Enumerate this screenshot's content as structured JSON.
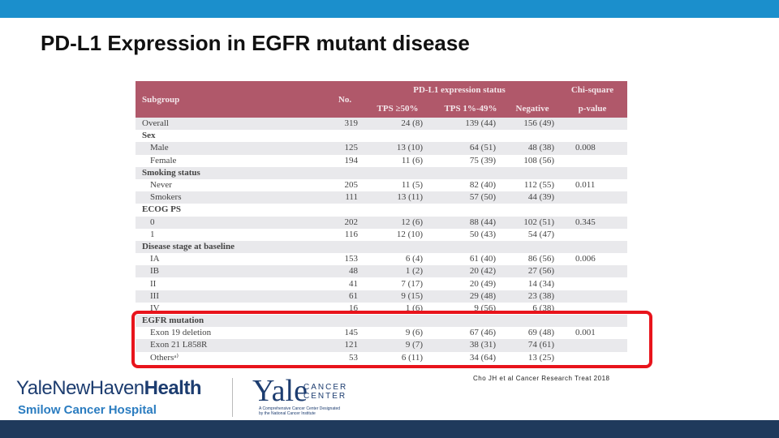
{
  "slide": {
    "title": "PD-L1 Expression in EGFR mutant disease",
    "citation": "Cho JH et al Cancer Research Treat 2018"
  },
  "table": {
    "header": {
      "subgroup": "Subgroup",
      "no": "No.",
      "group": "PD-L1 expression status",
      "columns": [
        "TPS ≥50%",
        "TPS 1%-49%",
        "Negative"
      ],
      "pvalue": [
        "Chi-square",
        "p-value"
      ]
    },
    "rows": [
      [
        "Overall",
        "319",
        "24 (8)",
        "139 (44)",
        "156 (49)"
      ],
      [
        "Sex"
      ],
      [
        "Male",
        "125",
        "13 (10)",
        "64 (51)",
        "48 (38)",
        "0.008"
      ],
      [
        "Female",
        "194",
        "11 (6)",
        "75 (39)",
        "108 (56)"
      ],
      [
        "Smoking status"
      ],
      [
        "Never",
        "205",
        "11 (5)",
        "82 (40)",
        "112 (55)",
        "0.011"
      ],
      [
        "Smokers",
        "111",
        "13 (11)",
        "57 (50)",
        "44 (39)"
      ],
      [
        "ECOG PS"
      ],
      [
        "0",
        "202",
        "12 (6)",
        "88 (44)",
        "102 (51)",
        "0.345"
      ],
      [
        "1",
        "116",
        "12 (10)",
        "50 (43)",
        "54 (47)"
      ],
      [
        "Disease stage at baseline"
      ],
      [
        "IA",
        "153",
        "6 (4)",
        "61 (40)",
        "86 (56)",
        "0.006"
      ],
      [
        "IB",
        "48",
        "1 (2)",
        "20 (42)",
        "27 (56)"
      ],
      [
        "II",
        "41",
        "7 (17)",
        "20 (49)",
        "14 (34)"
      ],
      [
        "III",
        "61",
        "9 (15)",
        "29 (48)",
        "23 (38)"
      ],
      [
        "IV",
        "16",
        "1 (6)",
        "9 (56)",
        "6 (38)"
      ],
      [
        "EGFR mutation"
      ],
      [
        "Exon 19 deletion",
        "145",
        "9 (6)",
        "67 (46)",
        "69 (48)",
        "0.001"
      ],
      [
        "Exon 21 L858R",
        "121",
        "9 (7)",
        "38 (31)",
        "74 (61)"
      ],
      [
        "Othersᵃ⁾",
        "53",
        "6 (11)",
        "34 (64)",
        "13 (25)"
      ]
    ]
  },
  "logos": {
    "ynhh": [
      "YaleNewHaven",
      "Health"
    ],
    "smilow": "Smilow Cancer Hospital",
    "yale": "Yale",
    "cancer": "CANCER",
    "center": "CENTER",
    "designation": [
      "A Comprehensive Cancer Center Designated",
      "by the National Cancer Institute"
    ]
  }
}
